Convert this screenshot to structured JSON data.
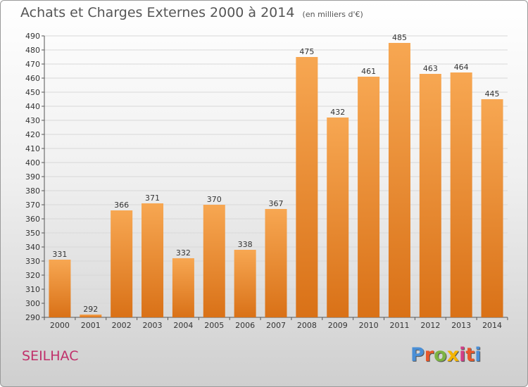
{
  "header": {
    "title": "Achats et Charges Externes 2000 à 2014",
    "subtitle": "(en milliers d'€)"
  },
  "footer": {
    "commune": "SEILHAC",
    "brand": "Proxiti"
  },
  "colors": {
    "bar_light": "#f7a752",
    "bar_dark": "#d97117",
    "commune_text": "#c0306a",
    "logo_letters": [
      "#4a8fd6",
      "#e8572a",
      "#7cb342",
      "#f4b400",
      "#d23f87",
      "#e8572a",
      "#4a8fd6"
    ]
  },
  "chart_data": {
    "type": "bar",
    "title": "Achats et Charges Externes 2000 à 2014",
    "subtitle": "(en milliers d'€)",
    "categories": [
      "2000",
      "2001",
      "2002",
      "2003",
      "2004",
      "2005",
      "2006",
      "2007",
      "2008",
      "2009",
      "2010",
      "2011",
      "2012",
      "2013",
      "2014"
    ],
    "values": [
      331,
      292,
      366,
      371,
      332,
      370,
      338,
      367,
      475,
      432,
      461,
      485,
      463,
      464,
      445
    ],
    "ylim": [
      290,
      490
    ],
    "ytick_step": 10,
    "grid": true,
    "data_labels": true
  }
}
